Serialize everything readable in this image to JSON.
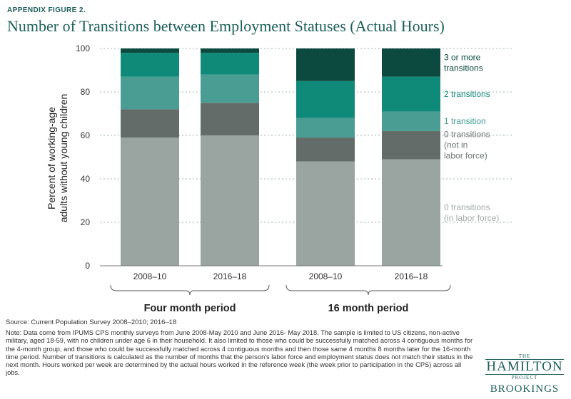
{
  "figure_label": "APPENDIX FIGURE 2.",
  "title": "Number of Transitions between Employment Statuses (Actual Hours)",
  "source": "Source: Current Population Survey 2008–2010; 2016–18",
  "note": "Note: Data come from IPUMS CPS monthly surveys from June 2008-May 2010 and June 2016- May 2018. The sample is limited to US citizens, non-active military, aged 18-59, with no children under age 6 in their household. It also limited to those who could be successfully matched across 4 contiguous months for the 4-month group, and those who could be successfully matched across 4 contiguous months and then those same 4 months 8 months later for the 16-month time period. Number of transitions is calculated as the number of months that the person's labor force and employment status does not match their status in the next month. Hours worked per week are determined by the actual hours worked in the reference week (the week prior to participation in the CPS) across all jobs.",
  "logo": {
    "the": "THE",
    "hamilton": "HAMILTON",
    "project": "PROJECT",
    "brookings": "BROOKINGS"
  },
  "chart_data": {
    "type": "bar",
    "stacked": true,
    "ylabel": "Percent of working-age adults without young children",
    "ylim": [
      0,
      100
    ],
    "yticks": [
      0,
      20,
      40,
      60,
      80,
      100
    ],
    "grid": true,
    "categories": [
      "2008–10",
      "2016–18",
      "2008–10",
      "2016–18"
    ],
    "groups": [
      {
        "label": "Four month period",
        "categories": [
          0,
          1
        ]
      },
      {
        "label": "16 month period",
        "categories": [
          2,
          3
        ]
      }
    ],
    "legend_placement": "right, labels aligned to last bar segments",
    "series": [
      {
        "name": "0 transitions (in labor force)",
        "label_lines": [
          "0 transitions",
          "(in labor force)"
        ],
        "color": "#9aa5a2",
        "label_color": "#a3aba9",
        "values": [
          59,
          60,
          48,
          49
        ]
      },
      {
        "name": "0 transitions (not in labor force)",
        "label_lines": [
          "0 transitions",
          "(not in",
          "labor force)"
        ],
        "color": "#636c69",
        "label_color": "#6d7472",
        "values": [
          13,
          15,
          11,
          13
        ]
      },
      {
        "name": "1 transition",
        "label_lines": [
          "1 transition"
        ],
        "color": "#4a9d92",
        "label_color": "#3f9a8f",
        "values": [
          15,
          13,
          9,
          9
        ]
      },
      {
        "name": "2 transitions",
        "label_lines": [
          "2 transitions"
        ],
        "color": "#108a78",
        "label_color": "#108a78",
        "values": [
          11,
          10,
          17,
          16
        ]
      },
      {
        "name": "3 or more transitions",
        "label_lines": [
          "3 or more",
          "transitions"
        ],
        "color": "#0c4a40",
        "label_color": "#0c4a40",
        "values": [
          2,
          2,
          15,
          13
        ]
      }
    ]
  }
}
